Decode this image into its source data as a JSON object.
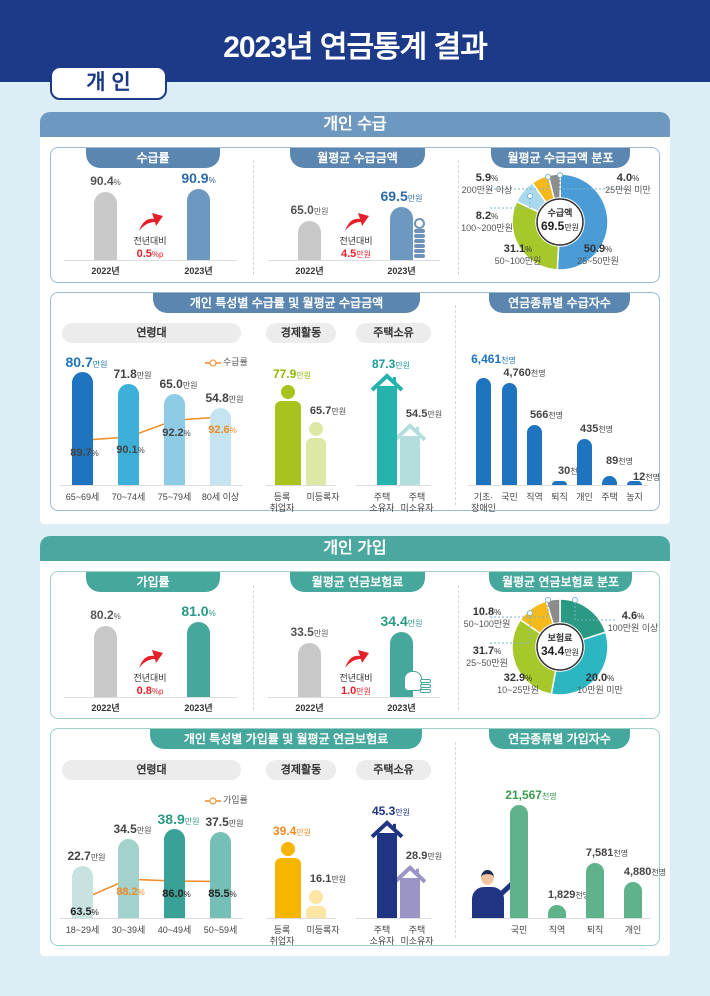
{
  "header": {
    "title": "2023년 연금통계 결과",
    "tab": "개 인"
  },
  "sections": {
    "receipt": "개인 수급",
    "join": "개인 가입"
  },
  "chart_data": [
    {
      "type": "bar",
      "title": "수급률",
      "categories": [
        "2022년",
        "2023년"
      ],
      "values": [
        90.4,
        90.9
      ],
      "unit": "%",
      "change_label": "전년대비",
      "change_value": "0.5",
      "change_unit": "%p"
    },
    {
      "type": "bar",
      "title": "월평균 수급금액",
      "categories": [
        "2022년",
        "2023년"
      ],
      "values": [
        65.0,
        69.5
      ],
      "unit": "만원",
      "change_label": "전년대비",
      "change_value": "4.5",
      "change_unit": "만원"
    },
    {
      "type": "pie",
      "title": "월평균 수급금액 분포",
      "center_label": "수급액",
      "center_value": "69.5",
      "center_unit": "만원",
      "unit": "%",
      "slices": [
        {
          "label": "25~50만원",
          "value": 50.9,
          "color": "#4a9bd6"
        },
        {
          "label": "50~100만원",
          "value": 31.1,
          "color": "#a7c82b"
        },
        {
          "label": "100~200만원",
          "value": 8.2,
          "color": "#a9d9ec"
        },
        {
          "label": "200만원 이상",
          "value": 5.9,
          "color": "#f5b91c"
        },
        {
          "label": "25만원 미만",
          "value": 4.0,
          "color": "#8c8c8c"
        }
      ]
    },
    {
      "type": "bar",
      "title": "개인 특성별 수급률 및 월평균 수급금액",
      "amount_unit": "만원",
      "rate_unit": "%",
      "legend": "수급률",
      "groups": [
        {
          "name": "연령대",
          "categories": [
            "65~69세",
            "70~74세",
            "75~79세",
            "80세 이상"
          ],
          "amounts": [
            80.7,
            71.8,
            65.0,
            54.8
          ],
          "rates": [
            89.7,
            90.1,
            92.2,
            92.6
          ]
        },
        {
          "name": "경제활동",
          "categories": [
            "등록\n취업자",
            "미등록자"
          ],
          "amounts": [
            77.9,
            65.7
          ]
        },
        {
          "name": "주택소유",
          "categories": [
            "주택\n소유자",
            "주택\n미소유자"
          ],
          "amounts": [
            87.3,
            54.5
          ]
        }
      ]
    },
    {
      "type": "bar",
      "title": "연금종류별 수급자수",
      "categories": [
        "기초·\n장애인",
        "국민",
        "직역",
        "퇴직",
        "개인",
        "주택",
        "농지"
      ],
      "values": [
        6461,
        4760,
        566,
        30,
        435,
        89,
        12
      ],
      "unit": "천명"
    },
    {
      "type": "bar",
      "title": "가입률",
      "categories": [
        "2022년",
        "2023년"
      ],
      "values": [
        80.2,
        81.0
      ],
      "unit": "%",
      "change_label": "전년대비",
      "change_value": "0.8",
      "change_unit": "%p"
    },
    {
      "type": "bar",
      "title": "월평균 연금보험료",
      "categories": [
        "2022년",
        "2023년"
      ],
      "values": [
        33.5,
        34.4
      ],
      "unit": "만원",
      "change_label": "전년대비",
      "change_value": "1.0",
      "change_unit": "만원"
    },
    {
      "type": "pie",
      "title": "월평균 연금보험료 분포",
      "center_label": "보험료",
      "center_value": "34.4",
      "center_unit": "만원",
      "unit": "%",
      "slices": [
        {
          "label": "10만원 미만",
          "value": 20.0,
          "color": "#2a9a84"
        },
        {
          "label": "10~25만원",
          "value": 32.9,
          "color": "#2bb6c2"
        },
        {
          "label": "25~50만원",
          "value": 31.7,
          "color": "#a7c82b"
        },
        {
          "label": "50~100만원",
          "value": 10.8,
          "color": "#f5b91c"
        },
        {
          "label": "100만원 이상",
          "value": 4.6,
          "color": "#8c8c8c"
        }
      ]
    },
    {
      "type": "bar",
      "title": "개인 특성별 가입률 및 월평균 연금보험료",
      "amount_unit": "만원",
      "rate_unit": "%",
      "legend": "가입률",
      "groups": [
        {
          "name": "연령대",
          "categories": [
            "18~29세",
            "30~39세",
            "40~49세",
            "50~59세"
          ],
          "amounts": [
            22.7,
            34.5,
            38.9,
            37.5
          ],
          "rates": [
            63.5,
            88.2,
            86.0,
            85.5
          ]
        },
        {
          "name": "경제활동",
          "categories": [
            "등록\n취업자",
            "미등록자"
          ],
          "amounts": [
            39.4,
            16.1
          ]
        },
        {
          "name": "주택소유",
          "categories": [
            "주택\n소유자",
            "주택\n미소유자"
          ],
          "amounts": [
            45.3,
            28.9
          ]
        }
      ]
    },
    {
      "type": "bar",
      "title": "연금종류별 가입자수",
      "categories": [
        "국민",
        "직역",
        "퇴직",
        "개인"
      ],
      "values": [
        21567,
        1829,
        7581,
        4880
      ],
      "unit": "천명"
    }
  ]
}
